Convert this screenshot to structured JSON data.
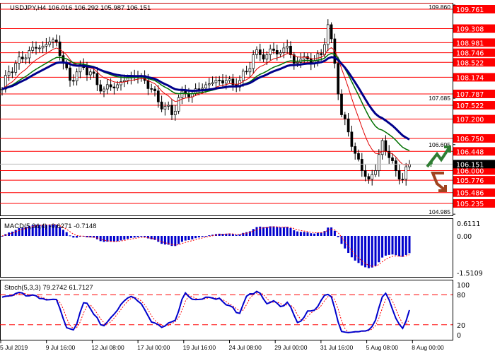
{
  "header": {
    "symbol": "USDJPY,H4",
    "ohlc": "106.016 106.292 105.987 106.151"
  },
  "chart_data": [
    {
      "type": "candlestick",
      "title": "USDJPY,H4",
      "close_samples": [
        107.9,
        108.3,
        108.5,
        108.6,
        108.8,
        108.85,
        108.9,
        109.0,
        109.0,
        108.5,
        108.1,
        108.3,
        108.4,
        108.3,
        108.0,
        107.9,
        107.95,
        108.0,
        108.1,
        108.2,
        108.2,
        108.1,
        107.9,
        107.6,
        107.5,
        107.3,
        107.7,
        107.8,
        107.8,
        107.9,
        108.0,
        108.05,
        108.1,
        108.1,
        108.0,
        108.1,
        108.3,
        108.7,
        108.7,
        108.7,
        108.8,
        108.75,
        108.9,
        108.5,
        108.6,
        108.6,
        108.55,
        108.7,
        109.4,
        108.5,
        107.3,
        106.9,
        106.4,
        106.0,
        105.8,
        106.0,
        106.7,
        106.3,
        106.0,
        105.8,
        106.151
      ],
      "ylim": [
        104.9,
        109.9
      ],
      "axis_ticks": [
        "109.860",
        "107.685",
        "106.605",
        "104.985"
      ],
      "current_price": "106.151",
      "levels": [
        "109.761",
        "109.308",
        "108.981",
        "108.746",
        "108.522",
        "108.174",
        "107.787",
        "107.522",
        "107.200",
        "106.750",
        "106.448",
        "106.000",
        "105.776",
        "105.486",
        "105.235"
      ],
      "x_tick_labels": [
        "5 Jul 2019",
        "9 Jul 16:00",
        "12 Jul 08:00",
        "17 Jul 00:00",
        "19 Jul 16:00",
        "24 Jul 08:00",
        "29 Jul 00:00",
        "31 Jul 16:00",
        "5 Aug 08:00",
        "8 Aug 00:00"
      ],
      "moving_average_colors": [
        "#e00000",
        "#007000",
        "#00008b"
      ],
      "level_color": "#ff0000",
      "scenario_icons": [
        "arrow-up-green",
        "arrow-down-brown"
      ],
      "scenario_mark": "?"
    },
    {
      "type": "bar",
      "label": "MACD(5,34,4) -0.6271 -0.7148",
      "ylim": [
        -1.5109,
        0.6111
      ],
      "ticks": [
        "0.6111",
        "0.00",
        "-1.5109"
      ],
      "colors": {
        "histogram": "#0000cc",
        "signal": "#ff0000"
      }
    },
    {
      "type": "line",
      "label": "Stoch(5,3,3) 79.2742 61.7127",
      "ylim": [
        0,
        100
      ],
      "ticks": [
        "100",
        "80",
        "20",
        "0"
      ],
      "levels": [
        80,
        20
      ],
      "colors": {
        "main": "#0000cc",
        "signal": "#ff0000"
      }
    }
  ]
}
